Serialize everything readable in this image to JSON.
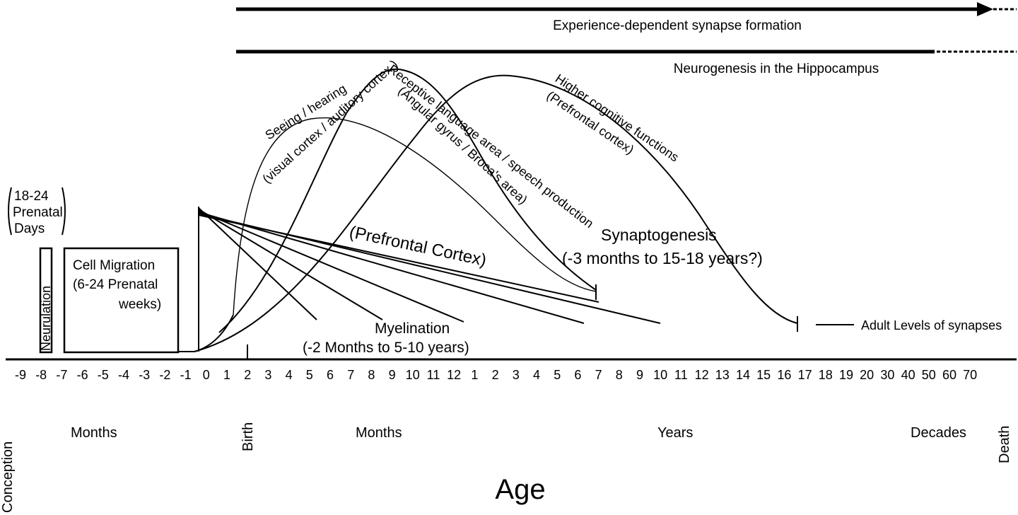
{
  "top_bars": {
    "synapse_formation": "Experience-dependent synapse formation",
    "neurogenesis": "Neurogenesis in the Hippocampus"
  },
  "prenatal": {
    "neurulation_days": [
      "18-24",
      "Prenatal",
      "Days"
    ],
    "neurulation": "Neurulation",
    "cell_migration": [
      "Cell Migration",
      "(6-24 Prenatal",
      "weeks)"
    ]
  },
  "curves": {
    "seeing_hearing": [
      "Seeing / hearing",
      "(visual cortex / auditory cortex )"
    ],
    "receptive_language": [
      "Receptive language area / speech production",
      "(Angular gyrus / Broca's area)"
    ],
    "higher_cognitive": [
      "Higher cognitive functions",
      "(Prefrontal cortex)"
    ]
  },
  "annotations": {
    "prefrontal_cortex": "(Prefrontal Cortex)",
    "synaptogenesis": [
      "Synaptogenesis",
      "(-3 months to 15-18 years?)"
    ],
    "myelination": [
      "Myelination",
      "(-2 Months to 5-10 years)"
    ],
    "adult_levels": "Adult Levels of synapses"
  },
  "axis": {
    "ticks": [
      "-9",
      "-8",
      "-7",
      "-6",
      "-5",
      "-4",
      "-3",
      "-2",
      "-1",
      "0",
      "1",
      "2",
      "3",
      "4",
      "5",
      "6",
      "7",
      "8",
      "9",
      "10",
      "11",
      "12",
      "1",
      "2",
      "3",
      "4",
      "5",
      "6",
      "7",
      "8",
      "9",
      "10",
      "11",
      "12",
      "13",
      "14",
      "15",
      "16",
      "17",
      "18",
      "19",
      "20",
      "30",
      "40",
      "50",
      "60",
      "70"
    ],
    "period_labels": {
      "conception": "Conception",
      "months_prenatal": "Months",
      "birth": "Birth",
      "months_postnatal": "Months",
      "years": "Years",
      "decades": "Decades",
      "death": "Death"
    },
    "title": "Age"
  }
}
